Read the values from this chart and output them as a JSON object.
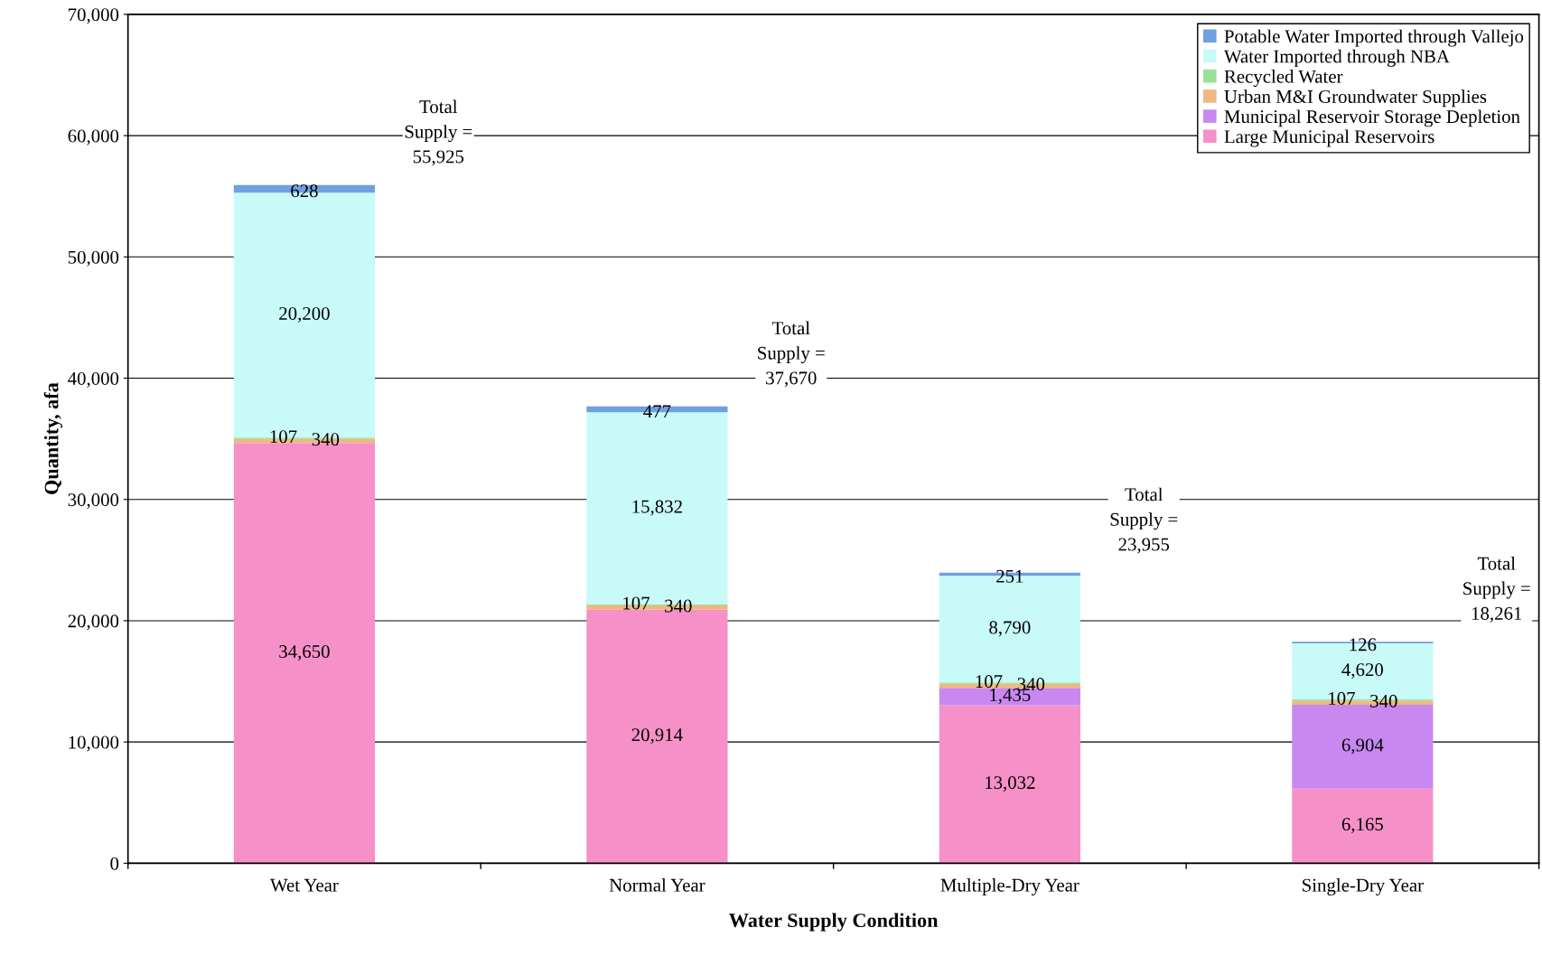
{
  "chart_data": {
    "type": "bar",
    "stacked": true,
    "xlabel": "Water Supply Condition",
    "ylabel": "Quantity, afa",
    "categories": [
      "Wet Year",
      "Normal Year",
      "Multiple-Dry Year",
      "Single-Dry Year"
    ],
    "series": [
      {
        "name": "Large Municipal Reservoirs",
        "color": "#f590c8",
        "values": [
          34650,
          20914,
          13032,
          6165
        ],
        "value_labels": [
          "34,650",
          "20,914",
          "13,032",
          "6,165"
        ]
      },
      {
        "name": "Municipal Reservoir Storage Depletion",
        "color": "#c888f0",
        "values": [
          null,
          null,
          1435,
          6904
        ],
        "value_labels": [
          null,
          null,
          "1,435",
          "6,904"
        ]
      },
      {
        "name": "Urban M&I Groundwater Supplies",
        "color": "#f0b880",
        "values": [
          340,
          340,
          340,
          340
        ],
        "value_labels": [
          "340",
          "340",
          "340",
          "340"
        ]
      },
      {
        "name": "Recycled Water",
        "color": "#98e098",
        "values": [
          107,
          107,
          107,
          107
        ],
        "value_labels": [
          "107",
          "107",
          "107",
          "107"
        ]
      },
      {
        "name": "Water Imported through NBA",
        "color": "#c8faf8",
        "values": [
          20200,
          15832,
          8790,
          4620
        ],
        "value_labels": [
          "20,200",
          "15,832",
          "8,790",
          "4,620"
        ]
      },
      {
        "name": "Potable Water Imported through Vallejo",
        "color": "#70a0e0",
        "values": [
          628,
          477,
          251,
          126
        ],
        "value_labels": [
          "628",
          "477",
          "251",
          "126"
        ]
      }
    ],
    "totals": [
      "Total\nSupply =\n55,925",
      "Total\nSupply =\n37,670",
      "Total\nSupply =\n23,955",
      "Total\nSupply =\n18,261"
    ],
    "ylim": [
      0,
      70000
    ],
    "yticks": [
      0,
      {
        "value": 10000,
        "label": "10,000"
      },
      {
        "value": 20000,
        "label": "20,000"
      },
      {
        "value": 30000,
        "label": "30,000"
      },
      {
        "value": 40000,
        "label": "40,000"
      },
      {
        "value": 50000,
        "label": "50,000"
      },
      {
        "value": 60000,
        "label": "60,000"
      },
      {
        "value": 70000,
        "label": "70,000"
      }
    ],
    "grid": "y",
    "legend": "top right"
  }
}
